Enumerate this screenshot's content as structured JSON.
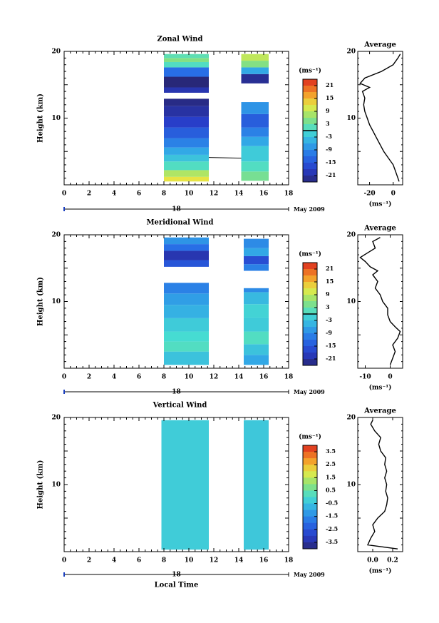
{
  "chart_data": [
    {
      "type": "heatmap",
      "title": "Zonal Wind",
      "ylabel": "Height (km)",
      "ylim": [
        0,
        20
      ],
      "yticks": [
        "20",
        "10"
      ],
      "xlim": [
        0,
        18
      ],
      "xticks": [
        "0",
        "2",
        "4",
        "6",
        "8",
        "10",
        "12",
        "14",
        "16",
        "18"
      ],
      "date_label": "18",
      "month_label": "May 2009",
      "colorbar": {
        "unit": "(ms⁻¹)",
        "ticks": [
          "21",
          "15",
          "9",
          "3",
          "-3",
          "-9",
          "-15",
          "-21"
        ],
        "range": [
          -24,
          24
        ],
        "contour_level": 0
      },
      "data_segments": [
        {
          "x": [
            8,
            11.6
          ],
          "rows": [
            {
              "y": [
                0.5,
                1.2
              ],
              "value": 12
            },
            {
              "y": [
                1.2,
                2.2
              ],
              "value": 8
            },
            {
              "y": [
                2.2,
                3.5
              ],
              "value": 1
            },
            {
              "y": [
                3.5,
                4.5
              ],
              "value": -3
            },
            {
              "y": [
                4.5,
                5.6
              ],
              "value": -6
            },
            {
              "y": [
                5.6,
                7.0
              ],
              "value": -10
            },
            {
              "y": [
                7.0,
                8.6
              ],
              "value": -14
            },
            {
              "y": [
                8.6,
                10.2
              ],
              "value": -18
            },
            {
              "y": [
                10.2,
                11.8
              ],
              "value": -21
            },
            {
              "y": [
                11.8,
                12.9
              ],
              "value": -23
            },
            {
              "y": [
                13.8,
                14.6
              ],
              "value": -20
            },
            {
              "y": [
                14.6,
                16.2
              ],
              "value": -24
            },
            {
              "y": [
                16.2,
                17.6
              ],
              "value": -12
            },
            {
              "y": [
                17.6,
                18.4
              ],
              "value": 1
            },
            {
              "y": [
                18.4,
                19.0
              ],
              "value": 5
            },
            {
              "y": [
                19.0,
                19.6
              ],
              "value": 2
            }
          ]
        },
        {
          "x": [
            14.2,
            16.4
          ],
          "rows": [
            {
              "y": [
                0.6,
                2.0
              ],
              "value": 4
            },
            {
              "y": [
                2.0,
                3.5
              ],
              "value": 1
            },
            {
              "y": [
                3.5,
                5.8
              ],
              "value": -2
            },
            {
              "y": [
                5.8,
                7.2
              ],
              "value": -6
            },
            {
              "y": [
                7.2,
                8.6
              ],
              "value": -10
            },
            {
              "y": [
                8.6,
                10.6
              ],
              "value": -14
            },
            {
              "y": [
                10.6,
                12.4
              ],
              "value": -8
            },
            {
              "y": [
                15.2,
                16.6
              ],
              "value": -22
            },
            {
              "y": [
                16.6,
                17.6
              ],
              "value": -6
            },
            {
              "y": [
                17.6,
                18.6
              ],
              "value": 5
            },
            {
              "y": [
                18.6,
                19.6
              ],
              "value": 9
            }
          ]
        }
      ],
      "average": {
        "title": "Average",
        "xticks": [
          "-20",
          "0"
        ],
        "xlim": [
          -30,
          8
        ],
        "unit": "(ms⁻¹)",
        "yticks": [
          "20",
          "10"
        ],
        "ylim": [
          0,
          20
        ],
        "profile": [
          {
            "height": 0.5,
            "value": 5
          },
          {
            "height": 1,
            "value": 4
          },
          {
            "height": 2,
            "value": 2
          },
          {
            "height": 3,
            "value": 0
          },
          {
            "height": 4,
            "value": -4
          },
          {
            "height": 5,
            "value": -8
          },
          {
            "height": 6,
            "value": -11
          },
          {
            "height": 7,
            "value": -14
          },
          {
            "height": 8,
            "value": -17
          },
          {
            "height": 9,
            "value": -20
          },
          {
            "height": 10,
            "value": -22
          },
          {
            "height": 11,
            "value": -24
          },
          {
            "height": 12,
            "value": -25
          },
          {
            "height": 13,
            "value": -24
          },
          {
            "height": 14,
            "value": -26
          },
          {
            "height": 14.6,
            "value": -20
          },
          {
            "height": 15.2,
            "value": -28
          },
          {
            "height": 16,
            "value": -24
          },
          {
            "height": 17,
            "value": -10
          },
          {
            "height": 18,
            "value": 0
          },
          {
            "height": 19,
            "value": 4
          },
          {
            "height": 19.6,
            "value": 6
          }
        ]
      }
    },
    {
      "type": "heatmap",
      "title": "Meridional Wind",
      "ylabel": "Height (km)",
      "ylim": [
        0,
        20
      ],
      "yticks": [
        "20",
        "10"
      ],
      "xlim": [
        0,
        18
      ],
      "xticks": [
        "0",
        "2",
        "4",
        "6",
        "8",
        "10",
        "12",
        "14",
        "16",
        "18"
      ],
      "date_label": "18",
      "month_label": "May 2009",
      "colorbar": {
        "unit": "(ms⁻¹)",
        "ticks": [
          "21",
          "15",
          "9",
          "3",
          "-3",
          "-9",
          "-15",
          "-21"
        ],
        "range": [
          -24,
          24
        ],
        "contour_level": 0
      },
      "data_segments": [
        {
          "x": [
            8,
            11.6
          ],
          "rows": [
            {
              "y": [
                0.5,
                2.5
              ],
              "value": -3
            },
            {
              "y": [
                2.5,
                4.0
              ],
              "value": 1
            },
            {
              "y": [
                4.0,
                5.5
              ],
              "value": 0
            },
            {
              "y": [
                5.5,
                7.5
              ],
              "value": -2
            },
            {
              "y": [
                7.5,
                9.5
              ],
              "value": -5
            },
            {
              "y": [
                9.5,
                11.2
              ],
              "value": -7
            },
            {
              "y": [
                11.2,
                12.8
              ],
              "value": -10
            },
            {
              "y": [
                15.2,
                16.2
              ],
              "value": -15
            },
            {
              "y": [
                16.2,
                17.6
              ],
              "value": -20
            },
            {
              "y": [
                17.6,
                18.6
              ],
              "value": -12
            },
            {
              "y": [
                18.6,
                19.6
              ],
              "value": -8
            }
          ]
        },
        {
          "x": [
            14.4,
            16.4
          ],
          "rows": [
            {
              "y": [
                0.5,
                2.0
              ],
              "value": -6
            },
            {
              "y": [
                2.0,
                3.6
              ],
              "value": -3
            },
            {
              "y": [
                3.6,
                5.5
              ],
              "value": 1
            },
            {
              "y": [
                5.5,
                7.6
              ],
              "value": -2
            },
            {
              "y": [
                7.6,
                9.6
              ],
              "value": -1
            },
            {
              "y": [
                9.6,
                11.4
              ],
              "value": -4
            },
            {
              "y": [
                11.4,
                12.0
              ],
              "value": -9
            },
            {
              "y": [
                14.6,
                15.6
              ],
              "value": -10
            },
            {
              "y": [
                15.6,
                16.8
              ],
              "value": -16
            },
            {
              "y": [
                16.8,
                18.0
              ],
              "value": -6
            },
            {
              "y": [
                18.0,
                19.4
              ],
              "value": -9
            }
          ]
        }
      ],
      "average": {
        "title": "Average",
        "xticks": [
          "-10",
          "0"
        ],
        "xlim": [
          -13,
          5
        ],
        "unit": "(ms⁻¹)",
        "yticks": [
          "20",
          "10"
        ],
        "ylim": [
          0,
          20
        ],
        "profile": [
          {
            "height": 0.5,
            "value": 0
          },
          {
            "height": 1.5,
            "value": 1
          },
          {
            "height": 2.5,
            "value": 2
          },
          {
            "height": 3.5,
            "value": 1
          },
          {
            "height": 4.5,
            "value": 3
          },
          {
            "height": 5.5,
            "value": 4
          },
          {
            "height": 6.2,
            "value": 2
          },
          {
            "height": 7,
            "value": 0
          },
          {
            "height": 8,
            "value": -1
          },
          {
            "height": 9,
            "value": -1
          },
          {
            "height": 10,
            "value": -3
          },
          {
            "height": 11,
            "value": -4
          },
          {
            "height": 12,
            "value": -6
          },
          {
            "height": 13,
            "value": -5
          },
          {
            "height": 14,
            "value": -7
          },
          {
            "height": 14.6,
            "value": -5
          },
          {
            "height": 15.2,
            "value": -8
          },
          {
            "height": 16,
            "value": -10
          },
          {
            "height": 16.6,
            "value": -12
          },
          {
            "height": 17.3,
            "value": -9
          },
          {
            "height": 18,
            "value": -6
          },
          {
            "height": 19,
            "value": -7
          },
          {
            "height": 19.6,
            "value": -4
          }
        ]
      }
    },
    {
      "type": "heatmap",
      "title": "Vertical Wind",
      "ylabel": "Height (km)",
      "ylim": [
        0,
        20
      ],
      "yticks": [
        "20",
        "10"
      ],
      "xlim": [
        0,
        18
      ],
      "xticks": [
        "0",
        "2",
        "4",
        "6",
        "8",
        "10",
        "12",
        "14",
        "16",
        "18"
      ],
      "date_label": "18",
      "month_label": "May 2009",
      "xlabel": "Local Time",
      "colorbar": {
        "unit": "(ms⁻¹)",
        "ticks": [
          "3.5",
          "2.5",
          "1.5",
          "0.5",
          "-0.5",
          "-1.5",
          "-2.5",
          "-3.5"
        ],
        "range": [
          -4,
          4
        ]
      },
      "data_segments": [
        {
          "x": [
            7.8,
            11.6
          ],
          "rows": [
            {
              "y": [
                0.3,
                19.6
              ],
              "value": -0.3
            }
          ]
        },
        {
          "x": [
            14.4,
            16.4
          ],
          "rows": [
            {
              "y": [
                0.3,
                19.6
              ],
              "value": -0.4
            }
          ]
        }
      ],
      "average": {
        "title": "Average",
        "xticks": [
          "0.0",
          "0.2"
        ],
        "xlim": [
          -0.15,
          0.3
        ],
        "unit": "(ms⁻¹)",
        "yticks": [
          "20",
          "10"
        ],
        "ylim": [
          0,
          20
        ],
        "profile": [
          {
            "height": 0.4,
            "value": 0.25
          },
          {
            "height": 1,
            "value": -0.05
          },
          {
            "height": 2,
            "value": -0.02
          },
          {
            "height": 3,
            "value": 0.02
          },
          {
            "height": 4,
            "value": 0.0
          },
          {
            "height": 5,
            "value": 0.05
          },
          {
            "height": 6,
            "value": 0.12
          },
          {
            "height": 7,
            "value": 0.14
          },
          {
            "height": 8,
            "value": 0.15
          },
          {
            "height": 9,
            "value": 0.13
          },
          {
            "height": 10,
            "value": 0.14
          },
          {
            "height": 11,
            "value": 0.12
          },
          {
            "height": 12,
            "value": 0.14
          },
          {
            "height": 13,
            "value": 0.12
          },
          {
            "height": 14,
            "value": 0.13
          },
          {
            "height": 15,
            "value": 0.08
          },
          {
            "height": 16,
            "value": 0.06
          },
          {
            "height": 17,
            "value": 0.08
          },
          {
            "height": 18,
            "value": 0.02
          },
          {
            "height": 19,
            "value": -0.02
          },
          {
            "height": 19.6,
            "value": 0.0
          }
        ]
      }
    }
  ]
}
